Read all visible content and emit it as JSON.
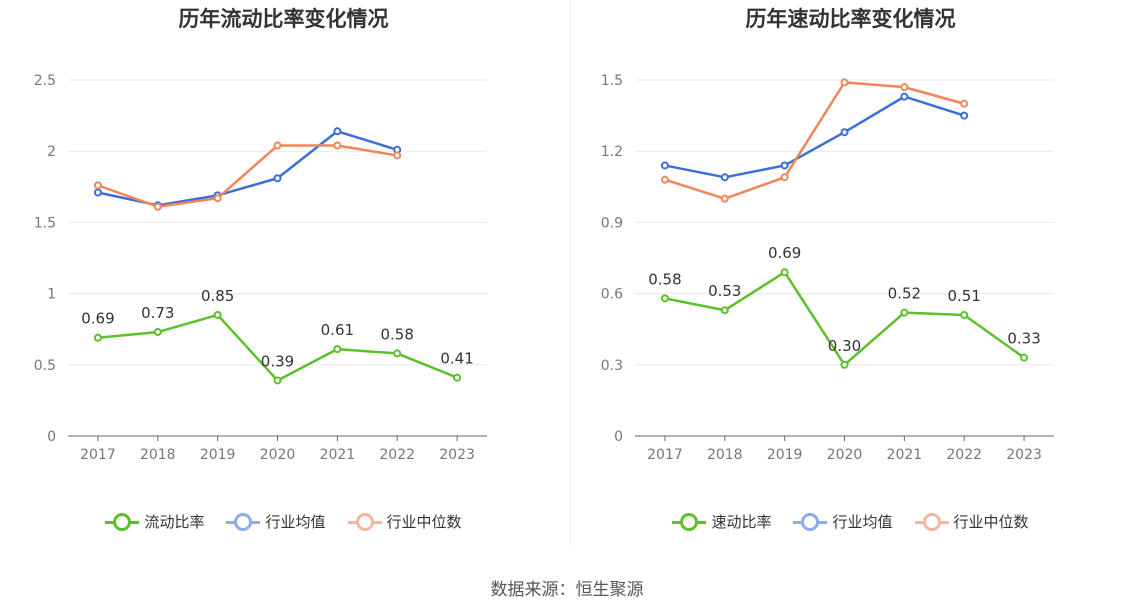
{
  "source": "数据来源：恒生聚源",
  "colors": {
    "series0": "#5bc12a",
    "series1": "#3a6fd8",
    "series2": "#f0855a",
    "legend1": "#8eabec",
    "legend2": "#f6b59c"
  },
  "chart_data": [
    {
      "type": "line",
      "title": "历年流动比率变化情况",
      "categories": [
        "2017",
        "2018",
        "2019",
        "2020",
        "2021",
        "2022",
        "2023"
      ],
      "ylim": [
        0,
        2.5
      ],
      "yticks": [
        "0",
        "0.5",
        "1",
        "1.5",
        "2",
        "2.5"
      ],
      "ytick_values": [
        0,
        0.5,
        1,
        1.5,
        2,
        2.5
      ],
      "grid": true,
      "legend_position": "bottom",
      "series": [
        {
          "name": "流动比率",
          "values": [
            0.69,
            0.73,
            0.85,
            0.39,
            0.61,
            0.58,
            0.41
          ],
          "labels": [
            "0.69",
            "0.73",
            "0.85",
            "0.39",
            "0.61",
            "0.58",
            "0.41"
          ]
        },
        {
          "name": "行业均值",
          "values": [
            1.71,
            1.62,
            1.69,
            1.81,
            2.14,
            2.01,
            null
          ]
        },
        {
          "name": "行业中位数",
          "values": [
            1.76,
            1.61,
            1.67,
            2.04,
            2.04,
            1.97,
            null
          ]
        }
      ]
    },
    {
      "type": "line",
      "title": "历年速动比率变化情况",
      "categories": [
        "2017",
        "2018",
        "2019",
        "2020",
        "2021",
        "2022",
        "2023"
      ],
      "ylim": [
        0,
        1.5
      ],
      "yticks": [
        "0",
        "0.3",
        "0.6",
        "0.9",
        "1.2",
        "1.5"
      ],
      "ytick_values": [
        0,
        0.3,
        0.6,
        0.9,
        1.2,
        1.5
      ],
      "grid": true,
      "legend_position": "bottom",
      "series": [
        {
          "name": "速动比率",
          "values": [
            0.58,
            0.53,
            0.69,
            0.3,
            0.52,
            0.51,
            0.33
          ],
          "labels": [
            "0.58",
            "0.53",
            "0.69",
            "0.30",
            "0.52",
            "0.51",
            "0.33"
          ]
        },
        {
          "name": "行业均值",
          "values": [
            1.14,
            1.09,
            1.14,
            1.28,
            1.43,
            1.35,
            null
          ]
        },
        {
          "name": "行业中位数",
          "values": [
            1.08,
            1.0,
            1.09,
            1.49,
            1.47,
            1.4,
            null
          ]
        }
      ]
    }
  ]
}
